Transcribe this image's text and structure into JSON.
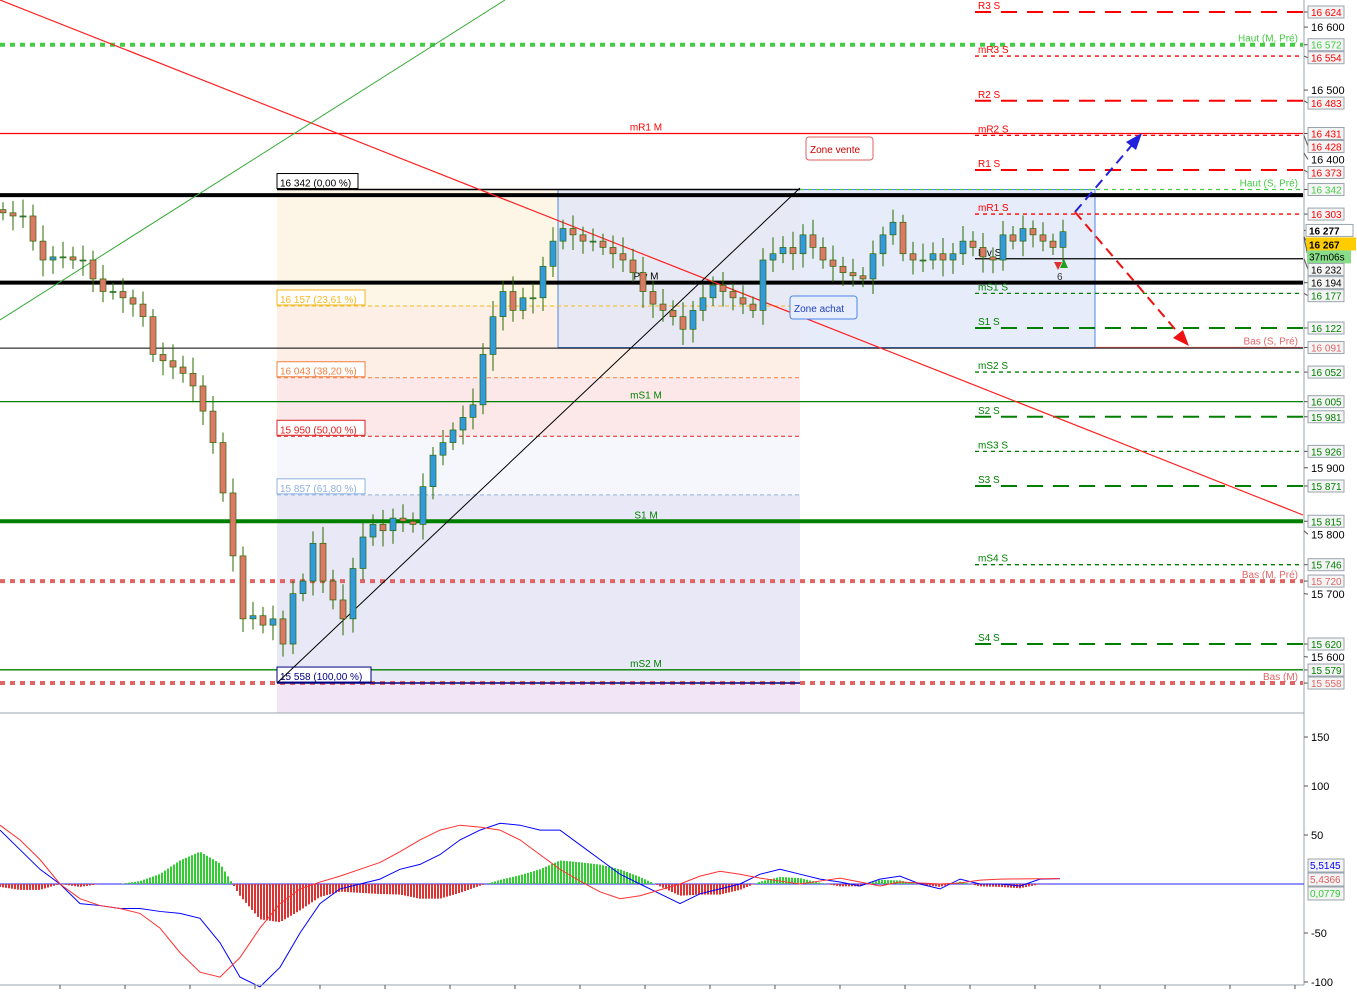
{
  "chart_data": [
    {
      "type": "candlestick",
      "price_range": [
        15480,
        16640
      ],
      "closes": [
        16305,
        16300,
        16300,
        16260,
        16230,
        16235,
        16235,
        16230,
        16230,
        16200,
        16180,
        16180,
        16170,
        16160,
        16140,
        16080,
        16070,
        16060,
        16050,
        16030,
        15990,
        15940,
        15860,
        15760,
        15660,
        15665,
        15650,
        15660,
        15620,
        15700,
        15720,
        15780,
        15720,
        15690,
        15660,
        15740,
        15790,
        15810,
        15800,
        15820,
        15815,
        15810,
        15870,
        15920,
        15940,
        15960,
        15980,
        16000,
        16080,
        16140,
        16180,
        16150,
        16170,
        16170,
        16220,
        16260,
        16280,
        16270,
        16260,
        16260,
        16250,
        16240,
        16230,
        16210,
        16180,
        16160,
        16150,
        16140,
        16120,
        16150,
        16170,
        16190,
        16180,
        16170,
        16160,
        16150,
        16230,
        16240,
        16250,
        16240,
        16270,
        16250,
        16230,
        16220,
        16210,
        16205,
        16200,
        16240,
        16270,
        16290,
        16240,
        16230,
        16230,
        16240,
        16230,
        16240,
        16260,
        16250,
        16235,
        16230,
        16270,
        16260,
        16280,
        16270,
        16260,
        16250,
        16275
      ],
      "axis_ticks": [
        "16 600",
        "16 500",
        "16 400",
        "15 900",
        "15 800",
        "15 700",
        "15 600"
      ],
      "levels": [
        {
          "price": 16624,
          "label": "R3 S",
          "value_label": "16 624",
          "color": "#ff0000",
          "style": "dash",
          "span": "short"
        },
        {
          "price": 16572,
          "label": "Haut (M, Pré)",
          "value_label": "16 572",
          "color": "#44cc44",
          "style": "dot-thick",
          "span": "full"
        },
        {
          "price": 16554,
          "label": "mR3 S",
          "value_label": "16 554",
          "color": "#ff0000",
          "style": "smalldash",
          "span": "short"
        },
        {
          "price": 16483,
          "label": "R2 S",
          "value_label": "16 483",
          "color": "#ff0000",
          "style": "dash",
          "span": "short"
        },
        {
          "price": 16431,
          "label": "mR1 M",
          "value_label": "16 431",
          "color": "#ff0000",
          "style": "solid",
          "span": "full"
        },
        {
          "price": 16428,
          "label": "mR2 S",
          "value_label": "16 428",
          "color": "#ff0000",
          "style": "smalldash",
          "span": "short"
        },
        {
          "price": 16373,
          "label": "R1 S",
          "value_label": "16 373",
          "color": "#ff0000",
          "style": "dash",
          "span": "short"
        },
        {
          "price": 16342,
          "label": "Haut (S, Pré)",
          "value_label": "16 342",
          "color": "#44cc44",
          "style": "smalldash",
          "span": "mid"
        },
        {
          "price": 16303,
          "label": "mR1 S",
          "value_label": "16 303",
          "color": "#ff0000",
          "style": "smalldash",
          "span": "short"
        },
        {
          "price": 16232,
          "label": "Piv S",
          "value_label": "16 232",
          "color": "#000000",
          "style": "solid",
          "span": "short"
        },
        {
          "price": 16194,
          "label": "Piv M",
          "value_label": "16 194",
          "color": "#000000",
          "style": "solid-thick",
          "span": "full"
        },
        {
          "price": 16177,
          "label": "mS1 S",
          "value_label": "16 177",
          "color": "#008000",
          "style": "smalldash",
          "span": "short"
        },
        {
          "price": 16122,
          "label": "S1 S",
          "value_label": "16 122",
          "color": "#008000",
          "style": "dash",
          "span": "short"
        },
        {
          "price": 16091,
          "label": "Bas (S, Pré)",
          "value_label": "16 091",
          "color": "#e06666",
          "style": "solid",
          "span": "right"
        },
        {
          "price": 16052,
          "label": "mS2 S",
          "value_label": "16 052",
          "color": "#008000",
          "style": "smalldash",
          "span": "short"
        },
        {
          "price": 16005,
          "label": "mS1 M",
          "value_label": "16 005",
          "color": "#008000",
          "style": "solid",
          "span": "full"
        },
        {
          "price": 15981,
          "label": "S2 S",
          "value_label": "15 981",
          "color": "#008000",
          "style": "dash",
          "span": "short"
        },
        {
          "price": 15926,
          "label": "mS3 S",
          "value_label": "15 926",
          "color": "#008000",
          "style": "smalldash",
          "span": "short"
        },
        {
          "price": 15871,
          "label": "S3 S",
          "value_label": "15 871",
          "color": "#008000",
          "style": "dash",
          "span": "short"
        },
        {
          "price": 15815,
          "label": "S1 M",
          "value_label": "15 815",
          "color": "#008000",
          "style": "solid-thick",
          "span": "full"
        },
        {
          "price": 15746,
          "label": "mS4 S",
          "value_label": "15 746",
          "color": "#008000",
          "style": "smalldash",
          "span": "short"
        },
        {
          "price": 15720,
          "label": "Bas (M, Pré)",
          "value_label": "15 720",
          "color": "#e06666",
          "style": "dot-thick",
          "span": "full"
        },
        {
          "price": 15620,
          "label": "S4 S",
          "value_label": "15 620",
          "color": "#008000",
          "style": "dash",
          "span": "short"
        },
        {
          "price": 15579,
          "label": "mS2 M",
          "value_label": "15 579",
          "color": "#008000",
          "style": "solid",
          "span": "full"
        },
        {
          "price": 15558,
          "label": "Bas (M)",
          "value_label": "15 558",
          "color": "#e06666",
          "style": "dot-thick",
          "span": "full"
        }
      ],
      "fibonacci": [
        {
          "price": 16342,
          "label": "16 342 (0,00 %)",
          "color": "#000000",
          "fill": "#fdf5e6"
        },
        {
          "price": 16157,
          "label": "16 157 (23,61 %)",
          "color": "#f5b820",
          "fill": "#fdefe6"
        },
        {
          "price": 16043,
          "label": "16 043 (38,20 %)",
          "color": "#f08040",
          "fill": "#fce8e8"
        },
        {
          "price": 15950,
          "label": "15 950 (50,00 %)",
          "color": "#e02020",
          "fill": "#f6f7fd"
        },
        {
          "price": 15857,
          "label": "15 857 (61,80 %)",
          "color": "#8fb0e0",
          "fill": "#e8e8f6"
        },
        {
          "price": 15558,
          "label": "15 558 (100,00 %)",
          "color": "#000080",
          "fill": "#f2e6f6"
        }
      ],
      "unlabeled_lines": [
        {
          "price": 16333,
          "color": "#000000"
        },
        {
          "price": 16090,
          "color": "#000000"
        }
      ],
      "annotations": {
        "zone_vente": "Zone vente",
        "zone_achat": "Zone achat",
        "signal_count": "6"
      },
      "current_price": {
        "value": "16 267",
        "prev": "16 277",
        "countdown": "37m06s",
        "color": "#ffcc00"
      }
    },
    {
      "type": "macd",
      "ylim": [
        -105,
        160
      ],
      "axis_ticks": [
        "150",
        "100",
        "50",
        "-50",
        "-100"
      ],
      "macd": [
        55,
        35,
        15,
        0,
        -20,
        -22,
        -25,
        -25,
        -28,
        -30,
        -35,
        -60,
        -95,
        -105,
        -85,
        -50,
        -20,
        -5,
        0,
        5,
        15,
        20,
        30,
        45,
        55,
        62,
        60,
        55,
        55,
        40,
        25,
        10,
        0,
        -10,
        -20,
        -10,
        -5,
        0,
        10,
        15,
        10,
        5,
        2,
        -2,
        5,
        8,
        0,
        -5,
        5,
        0,
        0,
        -2,
        5,
        5.51
      ],
      "signal": [
        60,
        45,
        25,
        0,
        -15,
        -22,
        -25,
        -30,
        -45,
        -70,
        -90,
        -95,
        -75,
        -45,
        -20,
        -5,
        2,
        8,
        15,
        22,
        33,
        45,
        55,
        60,
        58,
        55,
        45,
        30,
        15,
        3,
        -8,
        -15,
        -12,
        -6,
        0,
        8,
        13,
        10,
        6,
        3,
        0,
        3,
        6,
        2,
        -2,
        2,
        1,
        0,
        1,
        4,
        5,
        5.2,
        5.4,
        5.44
      ],
      "value_labels": {
        "macd": "5,5145",
        "signal": "5,4366",
        "histogram": "0,0779"
      },
      "colors": {
        "macd": "#0000ff",
        "signal": "#ff3030",
        "hist_pos": "#33cc33",
        "hist_neg": "#dd3333"
      }
    }
  ]
}
